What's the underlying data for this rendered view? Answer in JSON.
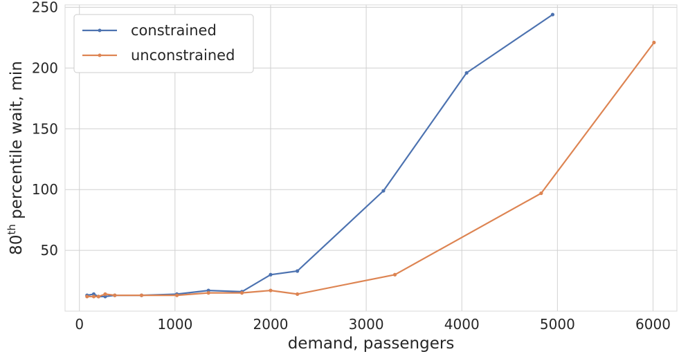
{
  "chart_data": {
    "type": "line",
    "title": "",
    "xlabel": "demand, passengers",
    "ylabel_base": "80",
    "ylabel_sup": "th",
    "ylabel_rest": " percentile wait, min",
    "xlim": [
      -150,
      6250
    ],
    "ylim": [
      0,
      252
    ],
    "xticks": [
      0,
      1000,
      2000,
      3000,
      4000,
      5000,
      6000
    ],
    "yticks": [
      50,
      100,
      150,
      200,
      250
    ],
    "grid": true,
    "legend_position": "top-left",
    "series": [
      {
        "name": "constrained",
        "color": "#4c72b0",
        "x": [
          80,
          150,
          200,
          270,
          370,
          650,
          1020,
          1350,
          1700,
          2000,
          2280,
          3180,
          4050,
          4950
        ],
        "y": [
          13,
          14,
          12,
          12,
          13,
          13,
          14,
          17,
          16,
          30,
          33,
          99,
          196,
          244
        ]
      },
      {
        "name": "unconstrained",
        "color": "#dd8452",
        "x": [
          80,
          150,
          200,
          270,
          370,
          650,
          1020,
          1350,
          1700,
          2000,
          2280,
          3300,
          4830,
          6010
        ],
        "y": [
          12,
          12,
          12,
          14,
          13,
          13,
          13,
          15,
          15,
          17,
          14,
          30,
          97,
          221
        ]
      }
    ]
  }
}
